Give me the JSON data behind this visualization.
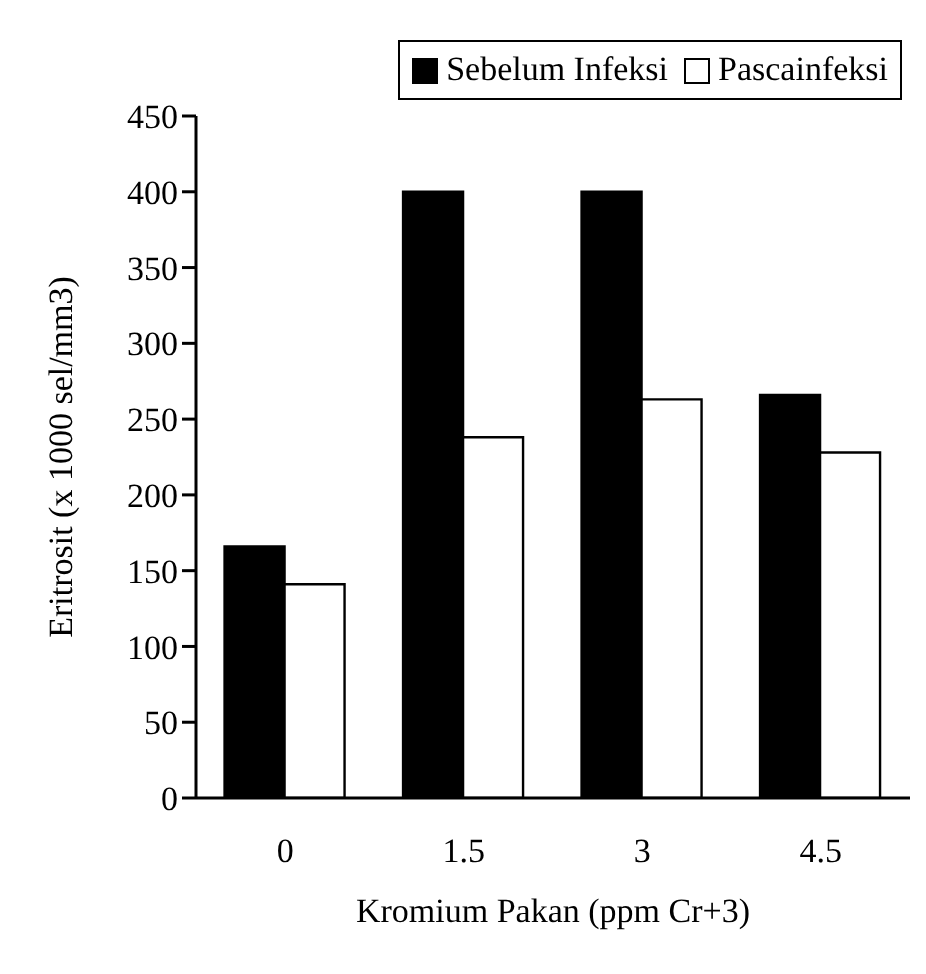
{
  "chart_data": {
    "type": "bar",
    "xlabel": "Kromium Pakan (ppm Cr+3)",
    "ylabel": "Eritrosit (x 1000 sel/mm3)",
    "categories": [
      "0",
      "1.5",
      "3",
      "4.5"
    ],
    "series": [
      {
        "name": "Sebelum Infeksi",
        "color": "#000000",
        "values": [
          166,
          400,
          400,
          266
        ]
      },
      {
        "name": "Pascainfeksi",
        "color": "#ffffff",
        "values": [
          141,
          238,
          263,
          228
        ]
      }
    ],
    "ylim": [
      0,
      450
    ],
    "yticks": [
      0,
      50,
      100,
      150,
      200,
      250,
      300,
      350,
      400,
      450
    ],
    "grid": false,
    "legend": "top right"
  }
}
